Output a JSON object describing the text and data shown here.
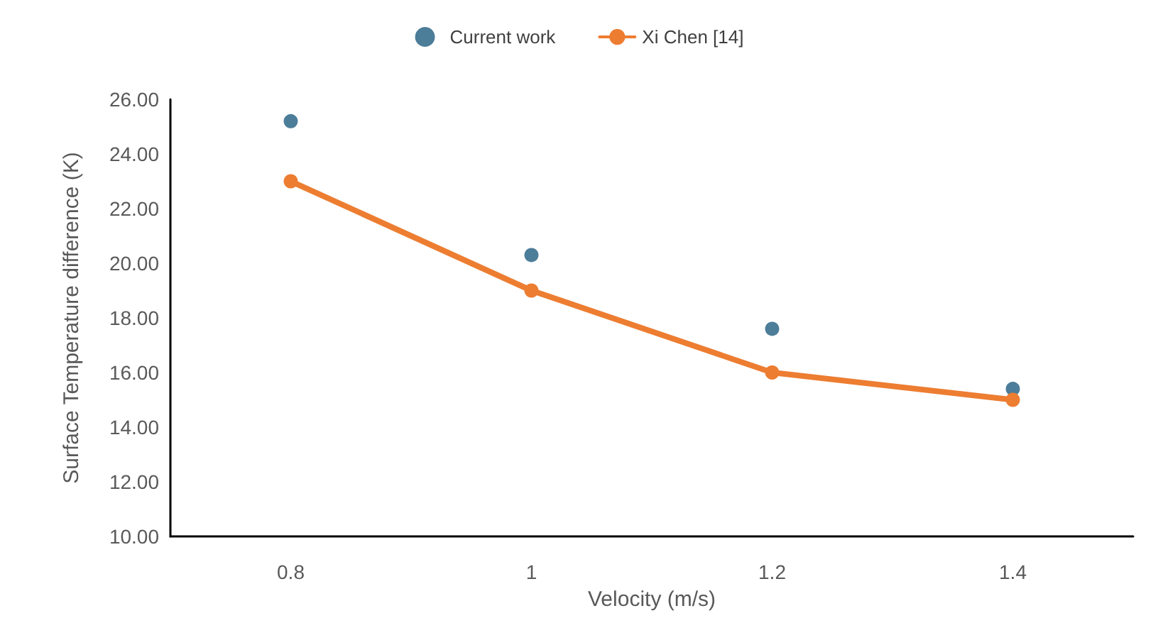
{
  "chart_data": {
    "type": "line",
    "xlabel": "Velocity (m/s)",
    "ylabel": "Surface Temperature difference (K)",
    "categories": [
      "0.8",
      "1",
      "1.2",
      "1.4"
    ],
    "series": [
      {
        "name": "Current work",
        "type": "scatter",
        "color": "#1f5c80",
        "values": [
          25.2,
          20.3,
          17.6,
          15.4
        ]
      },
      {
        "name": "Xi Chen [14]",
        "color": "#ed7d31",
        "values": [
          23,
          19,
          16,
          15
        ]
      }
    ],
    "ylim": [
      10,
      26
    ],
    "yticks": [
      {
        "value": 10,
        "label": "10.00"
      },
      {
        "value": 12,
        "label": "12.00"
      },
      {
        "value": 14,
        "label": "14.00"
      },
      {
        "value": 16,
        "label": "16.00"
      },
      {
        "value": 18,
        "label": "18.00"
      },
      {
        "value": 20,
        "label": "20.00"
      },
      {
        "value": 22,
        "label": "22.00"
      },
      {
        "value": 24,
        "label": "24.00"
      },
      {
        "value": 26,
        "label": "26.00"
      }
    ],
    "grid": false,
    "legend": "top",
    "marker": "circle",
    "line_style": "solid"
  }
}
